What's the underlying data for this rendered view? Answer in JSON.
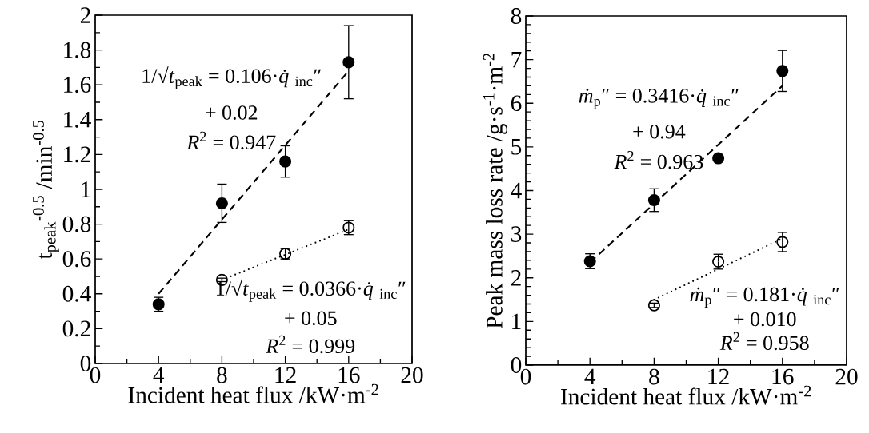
{
  "chart_data": [
    {
      "type": "scatter",
      "marker": "circle",
      "xlabel": "Incident heat flux /kW·m$^{-2}$",
      "ylabel": "t$_{peak}$$^{-0.5}$ /min$^{-0.5}$",
      "xlim": [
        0,
        20
      ],
      "xticks": [
        0,
        4,
        8,
        12,
        16,
        20
      ],
      "ylim": [
        0,
        2
      ],
      "yticks": [
        0,
        0.2,
        0.4,
        0.6,
        0.8,
        1,
        1.2,
        1.4,
        1.6,
        1.8,
        2
      ],
      "series": [
        {
          "type": "line",
          "line_style": "dashed",
          "marker": "none",
          "color": "#000000",
          "x": [
            4,
            16
          ],
          "values": [
            0.4,
            1.68
          ]
        },
        {
          "type": "line",
          "line_style": "dotted",
          "marker": "none",
          "color": "#000000",
          "x": [
            8,
            16
          ],
          "values": [
            0.48,
            0.77
          ]
        },
        {
          "color": "#000000",
          "x": [
            4,
            8,
            12,
            16
          ],
          "values": [
            0.34,
            0.92,
            1.16,
            1.73
          ],
          "errors": [
            0.04,
            0.11,
            0.09,
            0.21
          ]
        },
        {
          "color": "#000000",
          "x": [
            8,
            12,
            16
          ],
          "values": [
            0.48,
            0.63,
            0.78
          ],
          "errors": [
            0.01,
            0.03,
            0.04
          ]
        }
      ],
      "annotations": [
        "1/√*t*$_{peak}$ = 0.106·*q̇*$_{inc}$″",
        "+ 0.02",
        "*R*$^{2}$ = 0.947",
        "1/√*t*$_{peak}$ = 0.0366·*q̇*$_{inc}$″",
        "+ 0.05",
        "*R*$^{2}$ = 0.999"
      ]
    },
    {
      "type": "scatter",
      "marker": "circle",
      "xlabel": "Incident heat flux /kW·m$^{-2}$",
      "ylabel": "Peak mass loss rate /g·s$^{-1}$·m$^{-2}$",
      "xlim": [
        0,
        20
      ],
      "xticks": [
        0,
        4,
        8,
        12,
        16,
        20
      ],
      "ylim": [
        0,
        8
      ],
      "yticks": [
        0,
        1,
        2,
        3,
        4,
        5,
        6,
        7,
        8
      ],
      "series": [
        {
          "type": "line",
          "line_style": "dashed",
          "marker": "none",
          "color": "#000000",
          "x": [
            4,
            16
          ],
          "values": [
            2.35,
            6.4
          ]
        },
        {
          "type": "line",
          "line_style": "dotted",
          "marker": "none",
          "color": "#000000",
          "x": [
            8,
            16
          ],
          "values": [
            1.5,
            2.9
          ]
        },
        {
          "color": "#000000",
          "x": [
            4,
            8,
            12,
            16
          ],
          "values": [
            2.38,
            3.78,
            4.74,
            6.74
          ],
          "errors": [
            0.17,
            0.26,
            0.06,
            0.47
          ]
        },
        {
          "color": "#000000",
          "x": [
            8,
            12,
            16
          ],
          "values": [
            1.37,
            2.37,
            2.82
          ],
          "errors": [
            0.05,
            0.17,
            0.22
          ]
        }
      ],
      "annotations": [
        "*ṁ*$_{p}$″ = 0.3416·*q̇*$_{inc}$″",
        "+ 0.94",
        "*R*$^{2}$ = 0.963",
        "*ṁ*$_{p}$″ = 0.181·*q̇*$_{inc}$″",
        "+ 0.010",
        "*R*$^{2}$ = 0.958"
      ]
    }
  ]
}
